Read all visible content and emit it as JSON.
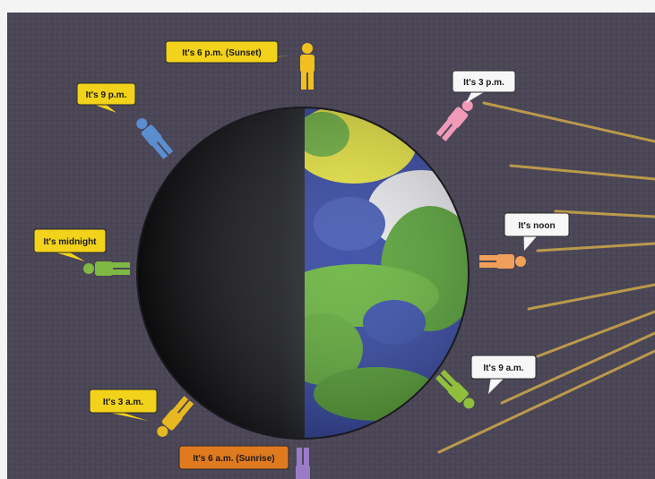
{
  "diagram": {
    "labels": {
      "six_pm": "It's 6 p.m. (Sunset)",
      "nine_pm": "It's 9 p.m.",
      "three_pm": "It's 3 p.m.",
      "midnight": "It's midnight",
      "noon": "It's noon",
      "nine_am": "It's 9 a.m.",
      "three_am": "It's 3 a.m.",
      "six_am": "It's 6 a.m. (Sunrise)"
    },
    "colors": {
      "background": "#4a4656",
      "yellow_bubble": "#f2d21a",
      "white_bubble": "#f7f7f7",
      "orange_bubble": "#e07a1f",
      "sun_ray": "#c8a24a",
      "ocean": "#2b3f9e",
      "land_green": "#5aa832",
      "land_yellow": "#e9e63a",
      "person_six_pm": "#f0c020",
      "person_nine_pm": "#5a8ed0",
      "person_three_pm": "#f19ab8",
      "person_midnight": "#7fb843",
      "person_noon": "#f0a05a",
      "person_nine_am": "#8fbf3c",
      "person_three_am": "#e8b820",
      "person_six_am": "#9a7bc8"
    },
    "icons": [
      "person-icon",
      "globe-icon",
      "sun-ray-icon"
    ]
  }
}
